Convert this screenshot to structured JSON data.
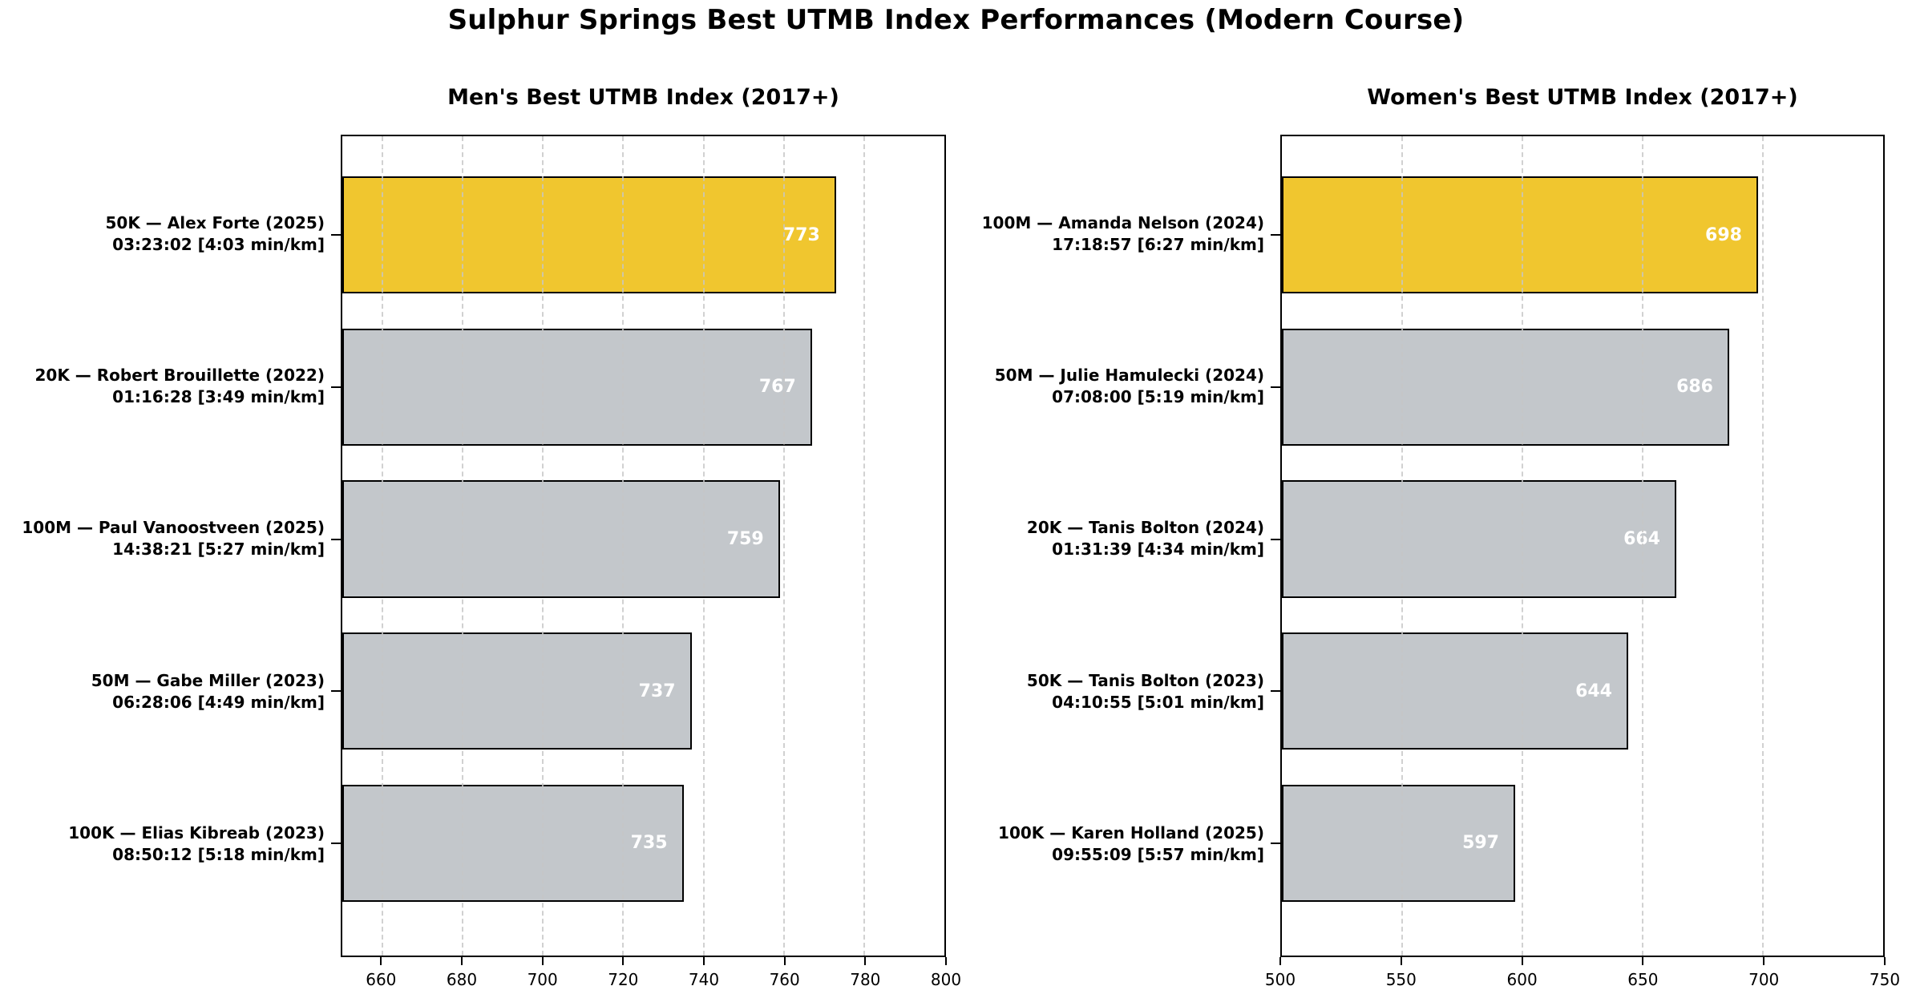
{
  "page": {
    "title": "Sulphur Springs Best UTMB Index Performances (Modern Course)",
    "background": "#ffffff"
  },
  "colors": {
    "highlight_bar": "#F0C62F",
    "default_bar": "#C3C7CB",
    "bar_edge": "#000000",
    "grid_line": "#D8D8D8",
    "axis": "#000000",
    "value_label_text": "#FFFFFF",
    "text": "#000000"
  },
  "chart_data": [
    {
      "type": "bar",
      "orientation": "horizontal",
      "title": "Men's Best UTMB Index (2017+)",
      "categories": [
        [
          "50K — Alex Forte (2025)",
          "03:23:02 [4:03 min/km]"
        ],
        [
          "20K — Robert Brouillette (2022)",
          "01:16:28 [3:49 min/km]"
        ],
        [
          "100M — Paul Vanoostveen (2025)",
          "14:38:21 [5:27 min/km]"
        ],
        [
          "50M — Gabe Miller (2023)",
          "06:28:06 [4:49 min/km]"
        ],
        [
          "100K — Elias Kibreab (2023)",
          "08:50:12 [5:18 min/km]"
        ]
      ],
      "values": [
        773,
        767,
        759,
        737,
        735
      ],
      "highlight_index": 0,
      "xlim": [
        650,
        800
      ],
      "xticks": [
        660,
        680,
        700,
        720,
        740,
        760,
        780,
        800
      ],
      "grid": "vertical-dashed",
      "legend": "none",
      "value_labels": "inside-end-white-bold"
    },
    {
      "type": "bar",
      "orientation": "horizontal",
      "title": "Women's Best UTMB Index (2017+)",
      "categories": [
        [
          "100M — Amanda Nelson (2024)",
          "17:18:57 [6:27 min/km]"
        ],
        [
          "50M — Julie Hamulecki (2024)",
          "07:08:00 [5:19 min/km]"
        ],
        [
          "20K — Tanis Bolton (2024)",
          "01:31:39 [4:34 min/km]"
        ],
        [
          "50K — Tanis Bolton (2023)",
          "04:10:55 [5:01 min/km]"
        ],
        [
          "100K — Karen Holland (2025)",
          "09:55:09 [5:57 min/km]"
        ]
      ],
      "values": [
        698,
        686,
        664,
        644,
        597
      ],
      "highlight_index": 0,
      "xlim": [
        500,
        750
      ],
      "xticks": [
        500,
        550,
        600,
        650,
        700,
        750
      ],
      "grid": "vertical-dashed",
      "legend": "none",
      "value_labels": "inside-end-white-bold"
    }
  ]
}
